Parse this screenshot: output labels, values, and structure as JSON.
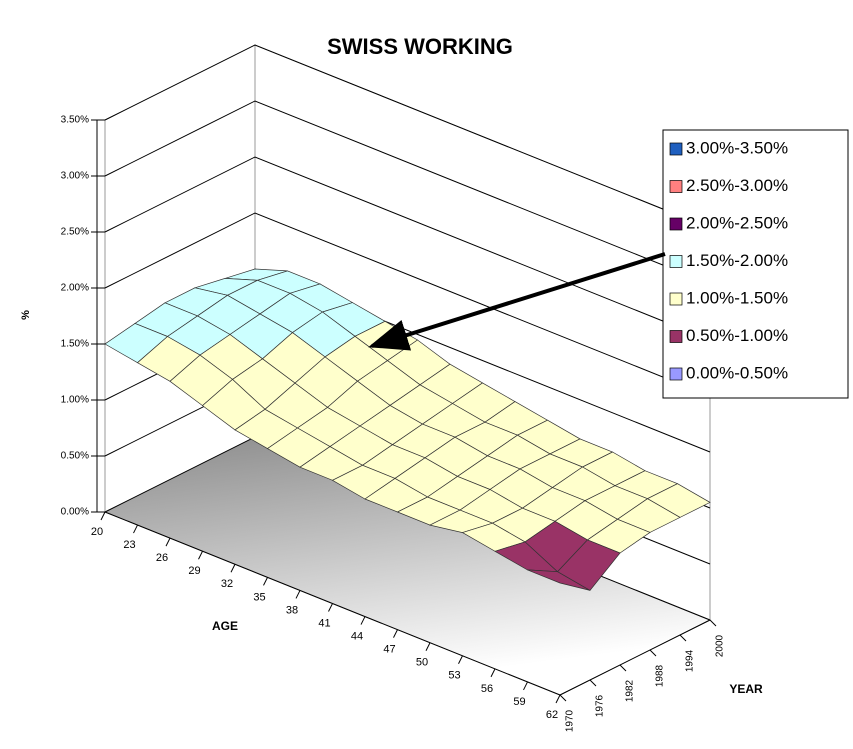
{
  "chart_data": {
    "type": "surface",
    "title": "SWISS WORKING",
    "x_label": "AGE",
    "y_label": "YEAR",
    "z_label": "%",
    "x": [
      20,
      23,
      26,
      29,
      32,
      35,
      38,
      41,
      44,
      47,
      50,
      53,
      56,
      59,
      62
    ],
    "y": [
      1970,
      1976,
      1982,
      1988,
      1994,
      2000
    ],
    "values": [
      [
        1.5,
        1.45,
        1.4,
        1.3,
        1.2,
        1.15,
        1.1,
        1.1,
        1.05,
        1.05,
        1.05,
        1.1,
        1.05,
        1.0,
        1.0
      ],
      [
        1.55,
        1.55,
        1.5,
        1.4,
        1.25,
        1.2,
        1.15,
        1.1,
        1.1,
        1.05,
        1.05,
        1.05,
        1.0,
        0.85,
        0.8
      ],
      [
        1.6,
        1.6,
        1.55,
        1.45,
        1.35,
        1.25,
        1.2,
        1.15,
        1.15,
        1.1,
        1.1,
        1.05,
        1.05,
        1.0,
        1.0
      ],
      [
        1.6,
        1.65,
        1.6,
        1.55,
        1.45,
        1.35,
        1.25,
        1.2,
        1.2,
        1.15,
        1.15,
        1.1,
        1.1,
        1.05,
        1.05
      ],
      [
        1.55,
        1.65,
        1.65,
        1.6,
        1.5,
        1.4,
        1.3,
        1.25,
        1.2,
        1.2,
        1.15,
        1.15,
        1.1,
        1.1,
        1.05
      ],
      [
        1.5,
        1.6,
        1.6,
        1.55,
        1.5,
        1.45,
        1.35,
        1.3,
        1.25,
        1.2,
        1.15,
        1.15,
        1.1,
        1.1,
        1.05
      ]
    ],
    "zlim": [
      0,
      3.5
    ],
    "zticks": [
      {
        "value": 0,
        "label": "0.00%"
      },
      {
        "value": 0.5,
        "label": "0.50%"
      },
      {
        "value": 1,
        "label": "1.00%"
      },
      {
        "value": 1.5,
        "label": "1.50%"
      },
      {
        "value": 2,
        "label": "2.00%"
      },
      {
        "value": 2.5,
        "label": "2.50%"
      },
      {
        "value": 3,
        "label": "3.00%"
      },
      {
        "value": 3.5,
        "label": "3.50%"
      }
    ],
    "bands": [
      {
        "name": "3.00%-3.50%",
        "color": "#1f5fbf",
        "range": [
          3,
          3.5
        ]
      },
      {
        "name": "2.50%-3.00%",
        "color": "#ff8080",
        "range": [
          2.5,
          3
        ]
      },
      {
        "name": "2.00%-2.50%",
        "color": "#660066",
        "range": [
          2,
          2.5
        ]
      },
      {
        "name": "1.50%-2.00%",
        "color": "#ccffff",
        "range": [
          1.5,
          2
        ]
      },
      {
        "name": "1.00%-1.50%",
        "color": "#ffffcc",
        "range": [
          1,
          1.5
        ]
      },
      {
        "name": "0.50%-1.00%",
        "color": "#993366",
        "range": [
          0.5,
          1
        ]
      },
      {
        "name": "0.00%-0.50%",
        "color": "#9999ff",
        "range": [
          0,
          0.5
        ]
      }
    ]
  }
}
